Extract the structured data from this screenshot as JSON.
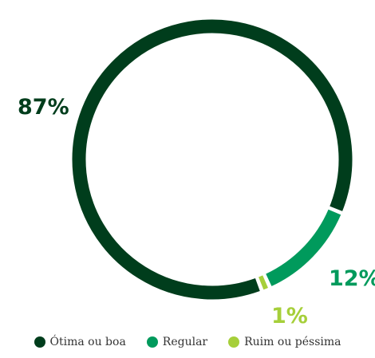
{
  "chart_data": {
    "type": "pie",
    "style": "donut",
    "categories": [
      "Ótima ou boa",
      "Regular",
      "Ruim ou péssima"
    ],
    "values": [
      87,
      12,
      1
    ],
    "labels": [
      "87%",
      "12%",
      "1%"
    ],
    "colors": [
      "#003d1c",
      "#009a5c",
      "#a6cf3a"
    ],
    "legend_position": "bottom"
  }
}
